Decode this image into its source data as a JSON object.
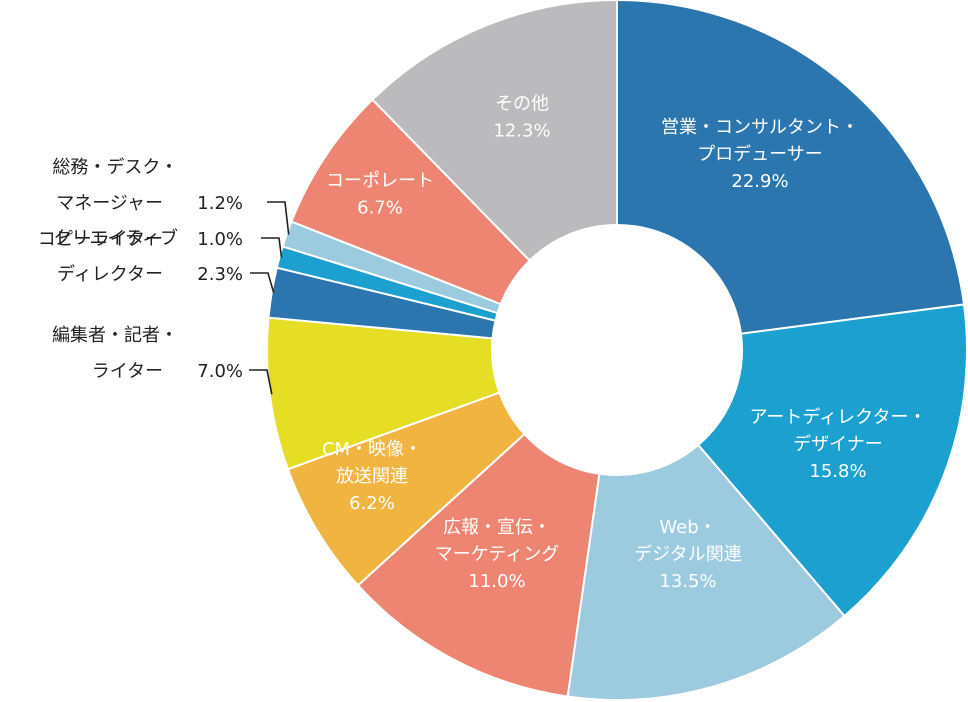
{
  "chart_data": {
    "type": "pie",
    "variant": "donut",
    "slices": [
      {
        "lines": [
          "営業・コンサルタント・",
          "プロデューサー"
        ],
        "pct_label": "22.9%",
        "value": 22.9,
        "color": "#2b76ae",
        "label_style": "inside"
      },
      {
        "lines": [
          "アートディレクター・",
          "デザイナー"
        ],
        "pct_label": "15.8%",
        "value": 15.8,
        "color": "#1ba0d0",
        "label_style": "inside"
      },
      {
        "lines": [
          "Web・",
          "デジタル関連"
        ],
        "pct_label": "13.5%",
        "value": 13.5,
        "color": "#9ccadf",
        "label_style": "inside"
      },
      {
        "lines": [
          "広報・宣伝・",
          "マーケティング"
        ],
        "pct_label": "11.0%",
        "value": 11.0,
        "color": "#ed8572",
        "label_style": "inside"
      },
      {
        "lines": [
          "CM・映像・",
          "放送関連"
        ],
        "pct_label": "6.2%",
        "value": 6.2,
        "color": "#f2b440",
        "label_style": "inside"
      },
      {
        "lines": [
          "編集者・記者・",
          "ライター"
        ],
        "pct_label": "7.0%",
        "value": 7.0,
        "color": "#e6dd25",
        "label_style": "outside"
      },
      {
        "lines": [
          "クリエイティブ",
          "ディレクター"
        ],
        "pct_label": "2.3%",
        "value": 2.3,
        "color": "#2b76ae",
        "label_style": "outside"
      },
      {
        "lines": [
          "コピーライター"
        ],
        "pct_label": "1.0%",
        "value": 1.0,
        "color": "#1ba0d0",
        "label_style": "outside"
      },
      {
        "lines": [
          "総務・デスク・",
          "マネージャー"
        ],
        "pct_label": "1.2%",
        "value": 1.2,
        "color": "#9ccadf",
        "label_style": "outside"
      },
      {
        "lines": [
          "コーポレート"
        ],
        "pct_label": "6.7%",
        "value": 6.7,
        "color": "#ed8572",
        "label_style": "inside"
      },
      {
        "lines": [
          "その他"
        ],
        "pct_label": "12.3%",
        "value": 12.3,
        "color": "#bbbbbd",
        "label_style": "inside"
      }
    ]
  }
}
